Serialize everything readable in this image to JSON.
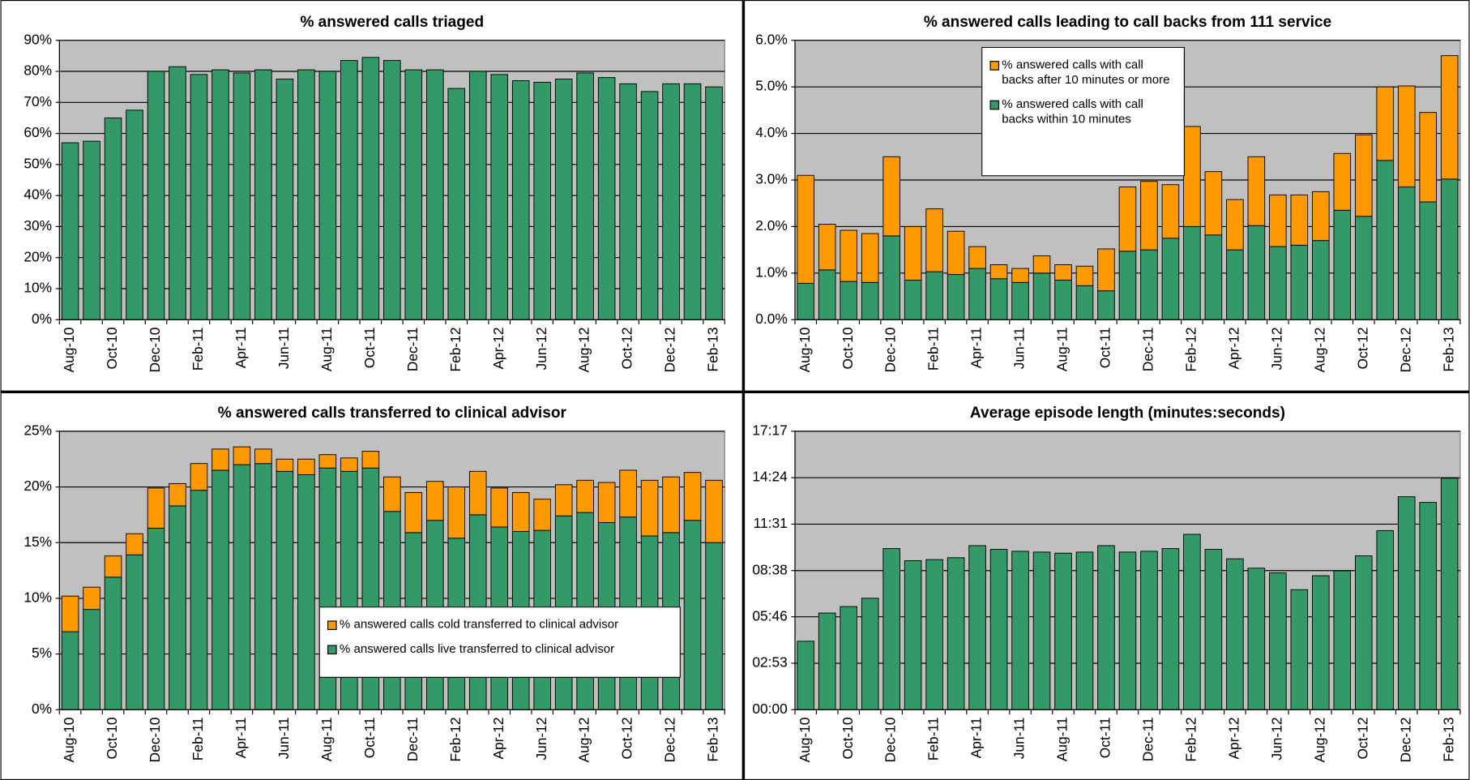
{
  "chart_data": [
    {
      "type": "bar",
      "title": "% answered calls triaged",
      "categories": [
        "Aug-10",
        null,
        "Oct-10",
        null,
        "Dec-10",
        null,
        "Feb-11",
        null,
        "Apr-11",
        null,
        "Jun-11",
        null,
        "Aug-11",
        null,
        "Oct-11",
        null,
        "Dec-11",
        null,
        "Feb-12",
        null,
        "Apr-12",
        null,
        "Jun-12",
        null,
        "Aug-12",
        null,
        "Oct-12",
        null,
        "Dec-12",
        null,
        "Feb-13"
      ],
      "values": [
        57,
        57.5,
        65,
        67.5,
        80,
        81.5,
        79,
        80.5,
        79.5,
        80.5,
        77.5,
        80.5,
        80,
        83.5,
        84.5,
        83.5,
        80.5,
        80.5,
        74.5,
        80,
        79,
        77,
        76.5,
        77.5,
        79.5,
        78,
        76,
        73.5,
        76,
        76,
        75
      ],
      "color": "#339966",
      "ylim": [
        0,
        90
      ],
      "yticks": [
        {
          "value": 0,
          "label": "0%"
        },
        {
          "value": 10,
          "label": "10%"
        },
        {
          "value": 20,
          "label": "20%"
        },
        {
          "value": 30,
          "label": "30%"
        },
        {
          "value": 40,
          "label": "40%"
        },
        {
          "value": 50,
          "label": "50%"
        },
        {
          "value": 60,
          "label": "60%"
        },
        {
          "value": 70,
          "label": "70%"
        },
        {
          "value": 80,
          "label": "80%"
        },
        {
          "value": 90,
          "label": "90%"
        }
      ],
      "grid": true
    },
    {
      "type": "stacked_bar",
      "title": "% answered calls leading to call backs from 111 service",
      "categories": [
        "Aug-10",
        null,
        "Oct-10",
        null,
        "Dec-10",
        null,
        "Feb-11",
        null,
        "Apr-11",
        null,
        "Jun-11",
        null,
        "Aug-11",
        null,
        "Oct-11",
        null,
        "Dec-11",
        null,
        "Feb-12",
        null,
        "Apr-12",
        null,
        "Jun-12",
        null,
        "Aug-12",
        null,
        "Oct-12",
        null,
        "Dec-12",
        null,
        "Feb-13"
      ],
      "series": [
        {
          "name": "% answered calls with call backs within 10 minutes",
          "color": "#339966",
          "values": [
            0.78,
            1.07,
            0.82,
            0.8,
            1.8,
            0.85,
            1.03,
            0.97,
            1.1,
            0.88,
            0.8,
            1.0,
            0.85,
            0.73,
            0.62,
            1.47,
            1.5,
            1.75,
            2.0,
            1.82,
            1.5,
            2.02,
            1.57,
            1.6,
            1.7,
            2.35,
            2.22,
            3.42,
            2.85,
            2.53,
            3.02
          ]
        },
        {
          "name": "% answered calls with call backs after 10 minutes or more",
          "color": "#ff9900",
          "values": [
            2.32,
            0.98,
            1.1,
            1.05,
            1.7,
            1.15,
            1.35,
            0.93,
            0.47,
            0.3,
            0.3,
            0.37,
            0.33,
            0.42,
            0.9,
            1.38,
            1.47,
            1.15,
            2.15,
            1.36,
            1.08,
            1.48,
            1.11,
            1.08,
            1.05,
            1.22,
            1.75,
            1.58,
            2.17,
            1.92,
            2.65
          ]
        }
      ],
      "ylim": [
        0,
        6
      ],
      "yticks": [
        {
          "value": 0,
          "label": "0.0%"
        },
        {
          "value": 1,
          "label": "1.0%"
        },
        {
          "value": 2,
          "label": "2.0%"
        },
        {
          "value": 3,
          "label": "3.0%"
        },
        {
          "value": 4,
          "label": "4.0%"
        },
        {
          "value": 5,
          "label": "5.0%"
        },
        {
          "value": 6,
          "label": "6.0%"
        }
      ],
      "grid": true,
      "legend": "upper-center"
    },
    {
      "type": "stacked_bar",
      "title": "% answered calls transferred to clinical advisor",
      "categories": [
        "Aug-10",
        null,
        "Oct-10",
        null,
        "Dec-10",
        null,
        "Feb-11",
        null,
        "Apr-11",
        null,
        "Jun-11",
        null,
        "Aug-11",
        null,
        "Oct-11",
        null,
        "Dec-11",
        null,
        "Feb-12",
        null,
        "Apr-12",
        null,
        "Jun-12",
        null,
        "Aug-12",
        null,
        "Oct-12",
        null,
        "Dec-12",
        null,
        "Feb-13"
      ],
      "series": [
        {
          "name": "% answered calls live transferred to clinical advisor",
          "color": "#339966",
          "values": [
            7.0,
            9.0,
            11.9,
            13.9,
            16.3,
            18.3,
            19.7,
            21.5,
            22.0,
            22.1,
            21.4,
            21.1,
            21.7,
            21.4,
            21.7,
            17.8,
            15.9,
            17.0,
            15.4,
            17.5,
            16.4,
            16.0,
            16.1,
            17.4,
            17.7,
            16.8,
            17.3,
            15.6,
            15.9,
            17.0,
            15.0
          ]
        },
        {
          "name": "% answered calls cold transferred to clinical advisor",
          "color": "#ff9900",
          "values": [
            3.2,
            2.0,
            1.9,
            1.9,
            3.6,
            2.0,
            2.4,
            1.9,
            1.6,
            1.3,
            1.1,
            1.4,
            1.2,
            1.2,
            1.5,
            3.1,
            3.6,
            3.5,
            4.6,
            3.9,
            3.5,
            3.5,
            2.8,
            2.8,
            2.9,
            3.6,
            4.2,
            5.0,
            5.0,
            4.3,
            5.6
          ]
        }
      ],
      "ylim": [
        0,
        25
      ],
      "yticks": [
        {
          "value": 0,
          "label": "0%"
        },
        {
          "value": 5,
          "label": "5%"
        },
        {
          "value": 10,
          "label": "10%"
        },
        {
          "value": 15,
          "label": "15%"
        },
        {
          "value": 20,
          "label": "20%"
        },
        {
          "value": 25,
          "label": "25%"
        }
      ],
      "grid": true,
      "legend": "lower-right"
    },
    {
      "type": "bar",
      "title": "Average episode length (minutes:seconds)",
      "categories": [
        "Aug-10",
        null,
        "Oct-10",
        null,
        "Dec-10",
        null,
        "Feb-11",
        null,
        "Apr-11",
        null,
        "Jun-11",
        null,
        "Aug-11",
        null,
        "Oct-11",
        null,
        "Dec-11",
        null,
        "Feb-12",
        null,
        "Apr-12",
        null,
        "Jun-12",
        null,
        "Aug-12",
        null,
        "Oct-12",
        null,
        "Dec-12",
        null,
        "Feb-13"
      ],
      "values": [
        255,
        360,
        384,
        415,
        600,
        555,
        559,
        566,
        611,
        597,
        590,
        587,
        583,
        587,
        611,
        587,
        590,
        600,
        653,
        597,
        562,
        527,
        510,
        447,
        499,
        517,
        573,
        667,
        793,
        772,
        862
      ],
      "color": "#339966",
      "ylim": [
        0,
        1037
      ],
      "yticks": [
        {
          "value": 0,
          "label": "00:00"
        },
        {
          "value": 173,
          "label": "02:53"
        },
        {
          "value": 346,
          "label": "05:46"
        },
        {
          "value": 518,
          "label": "08:38"
        },
        {
          "value": 691,
          "label": "11:31"
        },
        {
          "value": 864,
          "label": "14:24"
        },
        {
          "value": 1037,
          "label": "17:17"
        }
      ],
      "grid": true
    }
  ]
}
